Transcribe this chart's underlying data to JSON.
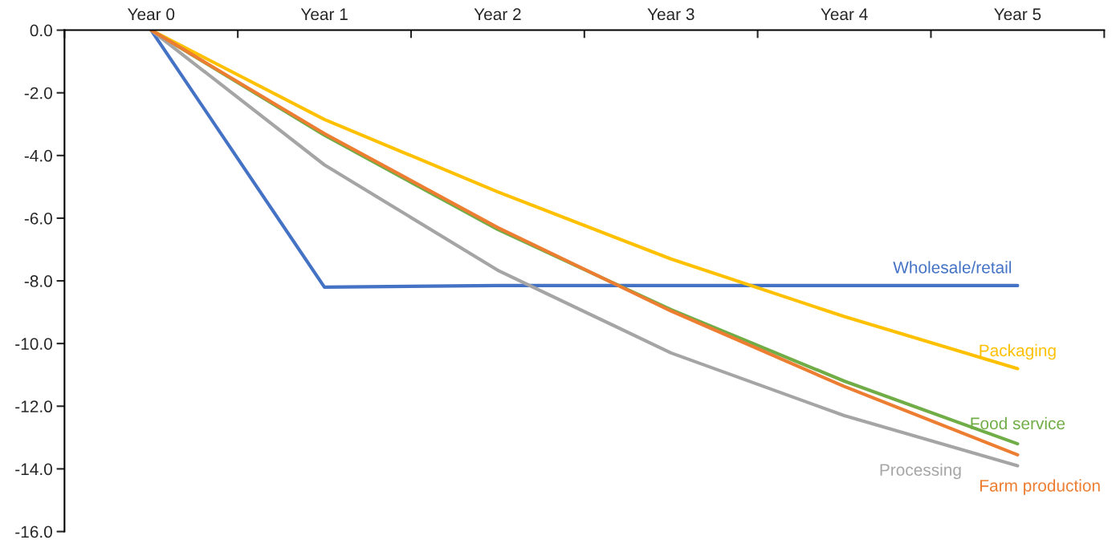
{
  "chart_data": {
    "type": "line",
    "categories": [
      "Year 0",
      "Year 1",
      "Year 2",
      "Year 3",
      "Year 4",
      "Year 5"
    ],
    "series": [
      {
        "name": "Wholesale/retail",
        "color": "#4472c4",
        "values": [
          0,
          -8.2,
          -8.15,
          -8.15,
          -8.15,
          -8.15
        ]
      },
      {
        "name": "Packaging",
        "color": "#ffc000",
        "values": [
          0,
          -2.85,
          -5.16,
          -7.3,
          -9.14,
          -10.8
        ]
      },
      {
        "name": "Food service",
        "color": "#70ad47",
        "values": [
          0,
          -3.35,
          -6.36,
          -8.92,
          -11.2,
          -13.2
        ]
      },
      {
        "name": "Processing",
        "color": "#a5a5a5",
        "values": [
          0,
          -4.3,
          -7.66,
          -10.3,
          -12.3,
          -13.9
        ]
      },
      {
        "name": "Farm production",
        "color": "#ed7d31",
        "values": [
          0,
          -3.3,
          -6.3,
          -8.96,
          -11.37,
          -13.55
        ]
      }
    ],
    "ylim": [
      -16,
      0
    ],
    "yticks": [
      {
        "value": 0,
        "label": "0.0"
      },
      {
        "value": -2,
        "label": "-2.0"
      },
      {
        "value": -4,
        "label": "-4.0"
      },
      {
        "value": -6,
        "label": "-6.0"
      },
      {
        "value": -8,
        "label": "-8.0"
      },
      {
        "value": -10,
        "label": "-10.0"
      },
      {
        "value": -12,
        "label": "-12.0"
      },
      {
        "value": -14,
        "label": "-14.0"
      },
      {
        "value": -16,
        "label": "-16.0"
      }
    ],
    "grid": false,
    "legend": false,
    "marker": "none",
    "line_style": "solid"
  }
}
